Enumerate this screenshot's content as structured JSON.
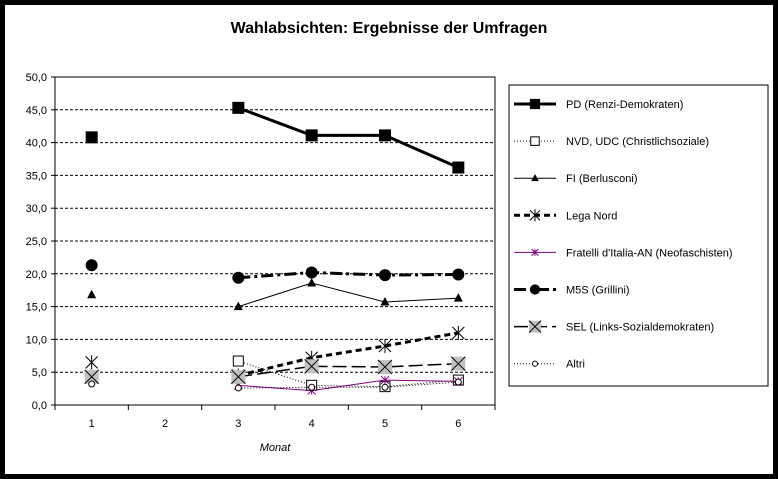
{
  "chart_data": {
    "type": "line",
    "title": "Wahlabsichten: Ergebnisse der Umfragen",
    "xlabel": "Monat",
    "ylabel": "",
    "categories": [
      "1",
      "2",
      "3",
      "4",
      "5",
      "6"
    ],
    "ylim": [
      0,
      50
    ],
    "yticks": [
      "0,0",
      "5,0",
      "10,0",
      "15,0",
      "20,0",
      "25,0",
      "30,0",
      "35,0",
      "40,0",
      "45,0",
      "50,0"
    ],
    "grid": "horizontal dashed",
    "legend_position": "right",
    "series": [
      {
        "name": "PD (Renzi-Demokraten)",
        "values": [
          40.8,
          null,
          45.3,
          41.1,
          41.1,
          36.2
        ],
        "marker": "square-filled",
        "line": "solid",
        "width": 3
      },
      {
        "name": "NVD, UDC (Christlichsoziale)",
        "values": [
          null,
          null,
          6.7,
          3.0,
          2.8,
          3.8
        ],
        "marker": "square-open",
        "line": "dotted",
        "width": 1
      },
      {
        "name": "FI (Berlusconi)",
        "values": [
          16.8,
          null,
          15.0,
          18.6,
          15.7,
          16.3
        ],
        "marker": "triangle",
        "line": "solid",
        "width": 1
      },
      {
        "name": "Lega Nord",
        "values": [
          6.5,
          null,
          4.5,
          7.2,
          9.0,
          11.0
        ],
        "marker": "star",
        "line": "dashed",
        "width": 3
      },
      {
        "name": "Fratelli d'Italia-AN (Neofaschisten)",
        "values": [
          4.0,
          null,
          3.0,
          2.2,
          3.8,
          3.6
        ],
        "marker": "asterisk",
        "line": "solid",
        "width": 1,
        "color": "#800080"
      },
      {
        "name": "M5S (Grillini)",
        "values": [
          21.3,
          null,
          19.4,
          20.2,
          19.8,
          19.9
        ],
        "marker": "circle-filled",
        "line": "dashdot",
        "width": 3
      },
      {
        "name": "SEL (Links-Sozialdemokraten)",
        "values": [
          4.3,
          null,
          4.3,
          5.9,
          5.8,
          6.3
        ],
        "marker": "square-x",
        "line": "longdash",
        "width": 1.5
      },
      {
        "name": "Altri",
        "values": [
          3.2,
          null,
          2.6,
          2.7,
          2.7,
          3.5
        ],
        "marker": "circle-open",
        "line": "dotted",
        "width": 1
      }
    ]
  }
}
